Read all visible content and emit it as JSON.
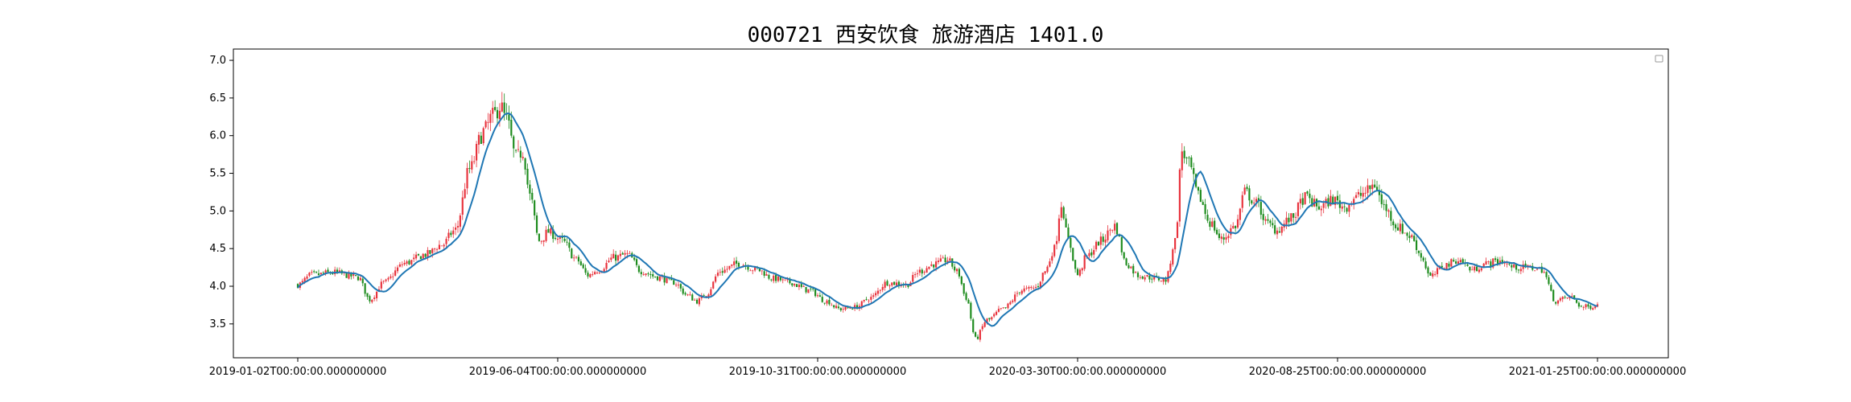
{
  "chart_data": {
    "type": "candlestick",
    "title": "000721 西安饮食 旅游酒店 1401.0",
    "ylim": [
      3.05,
      7.15
    ],
    "x_tick_labels": [
      "2019-01-02T00:00:00.000000000",
      "2019-06-04T00:00:00.000000000",
      "2019-10-31T00:00:00.000000000",
      "2020-03-30T00:00:00.000000000",
      "2020-08-25T00:00:00.000000000",
      "2021-01-25T00:00:00.000000000"
    ],
    "y_ticks": [
      3.5,
      4.0,
      4.5,
      5.0,
      5.5,
      6.0,
      6.5,
      7.0
    ],
    "y_tick_labels": [
      "3.5",
      "4.0",
      "4.5",
      "5.0",
      "5.5",
      "6.0",
      "6.5",
      "7.0"
    ],
    "legend": "top-right (empty)",
    "colors": {
      "up": "#e8323c",
      "down": "#1e8c1e",
      "ma_line": "#1f77b4"
    },
    "series": [
      {
        "kind": "ohlc",
        "points": []
      },
      {
        "kind": "moving-average",
        "points": []
      }
    ]
  }
}
